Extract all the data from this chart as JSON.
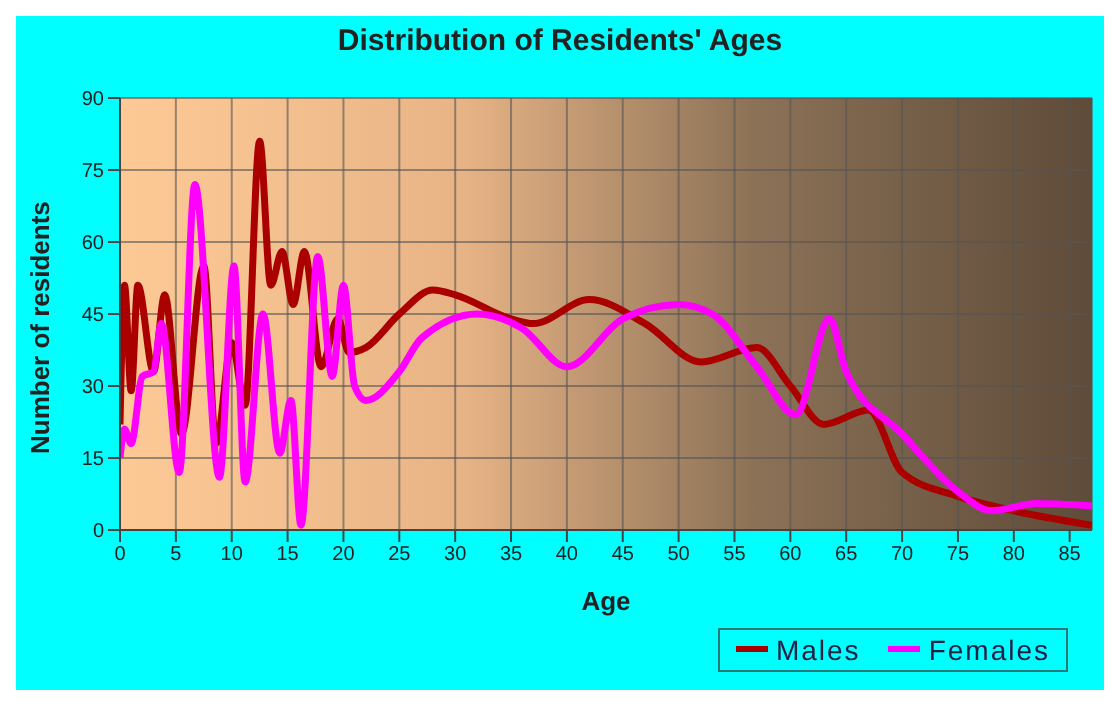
{
  "chart_data": {
    "type": "line",
    "title": "Distribution of Residents' Ages",
    "xlabel": "Age",
    "ylabel": "Number of residents",
    "xlim": [
      0,
      87
    ],
    "xticks": [
      0,
      5,
      10,
      15,
      20,
      25,
      30,
      35,
      40,
      45,
      50,
      55,
      60,
      65,
      70,
      75,
      80,
      85
    ],
    "ylim": [
      0,
      90
    ],
    "yticks": [
      0,
      15,
      30,
      45,
      60,
      75,
      90
    ],
    "grid": true,
    "legend": "bottom",
    "marker": "none",
    "line_style": "solid",
    "series": [
      {
        "name": "Males",
        "color": "#aa0000",
        "x": [
          0,
          0.4,
          1,
          1.6,
          3,
          4,
          5.5,
          7.5,
          8.6,
          10,
          11.2,
          12.5,
          13.5,
          14.5,
          15.5,
          16.5,
          18,
          19.5,
          20.5,
          22,
          25,
          28,
          30,
          35,
          37,
          42,
          47,
          52,
          57,
          60,
          63,
          67,
          70,
          75,
          80,
          87
        ],
        "values": [
          22,
          51,
          29,
          51,
          33,
          49,
          20,
          55,
          18,
          39,
          26,
          81,
          51,
          58,
          47,
          58,
          34,
          44,
          37,
          38,
          45,
          50,
          49,
          44,
          43,
          48,
          43,
          35,
          38,
          30,
          22,
          25,
          12,
          7,
          4,
          1
        ]
      },
      {
        "name": "Females",
        "color": "#ff00ff",
        "x": [
          0,
          0.4,
          1,
          2,
          3,
          3.7,
          5.3,
          6.7,
          8.9,
          10.2,
          11.2,
          12.8,
          14.3,
          15.3,
          16.2,
          17.7,
          19,
          20,
          21,
          22,
          25,
          27,
          32,
          36,
          40,
          45,
          50,
          53,
          57,
          60.5,
          63.5,
          65,
          70,
          75,
          78,
          82,
          87
        ],
        "values": [
          15,
          21,
          18,
          32,
          33,
          43,
          12,
          72,
          11,
          55,
          10,
          45,
          16,
          27,
          1,
          57,
          32,
          51,
          30,
          27,
          33,
          40,
          45,
          42,
          34,
          44,
          47,
          45,
          34,
          24,
          44,
          33,
          20,
          8,
          4,
          5.5,
          5
        ]
      }
    ]
  }
}
